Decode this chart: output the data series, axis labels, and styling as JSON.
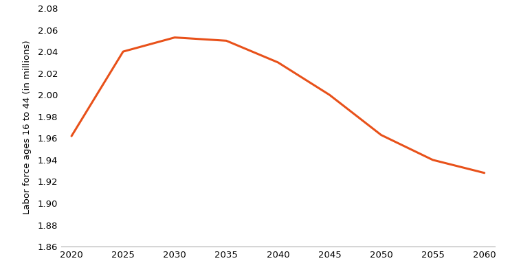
{
  "x": [
    2020,
    2025,
    2030,
    2035,
    2040,
    2045,
    2050,
    2055,
    2060
  ],
  "y": [
    1.962,
    2.04,
    2.053,
    2.05,
    2.03,
    2.0,
    1.963,
    1.94,
    1.928
  ],
  "line_color": "#E8511A",
  "line_width": 2.2,
  "ylabel": "Labor force ages 16 to 44 (in millions)",
  "ylim": [
    1.86,
    2.08
  ],
  "yticks": [
    1.86,
    1.88,
    1.9,
    1.92,
    1.94,
    1.96,
    1.98,
    2.0,
    2.02,
    2.04,
    2.06,
    2.08
  ],
  "xticks": [
    2020,
    2025,
    2030,
    2035,
    2040,
    2045,
    2050,
    2055,
    2060
  ],
  "xlim": [
    2019,
    2061
  ],
  "background_color": "#ffffff",
  "tick_label_fontsize": 9.5,
  "ylabel_fontsize": 9.5,
  "spine_color": "#aaaaaa"
}
